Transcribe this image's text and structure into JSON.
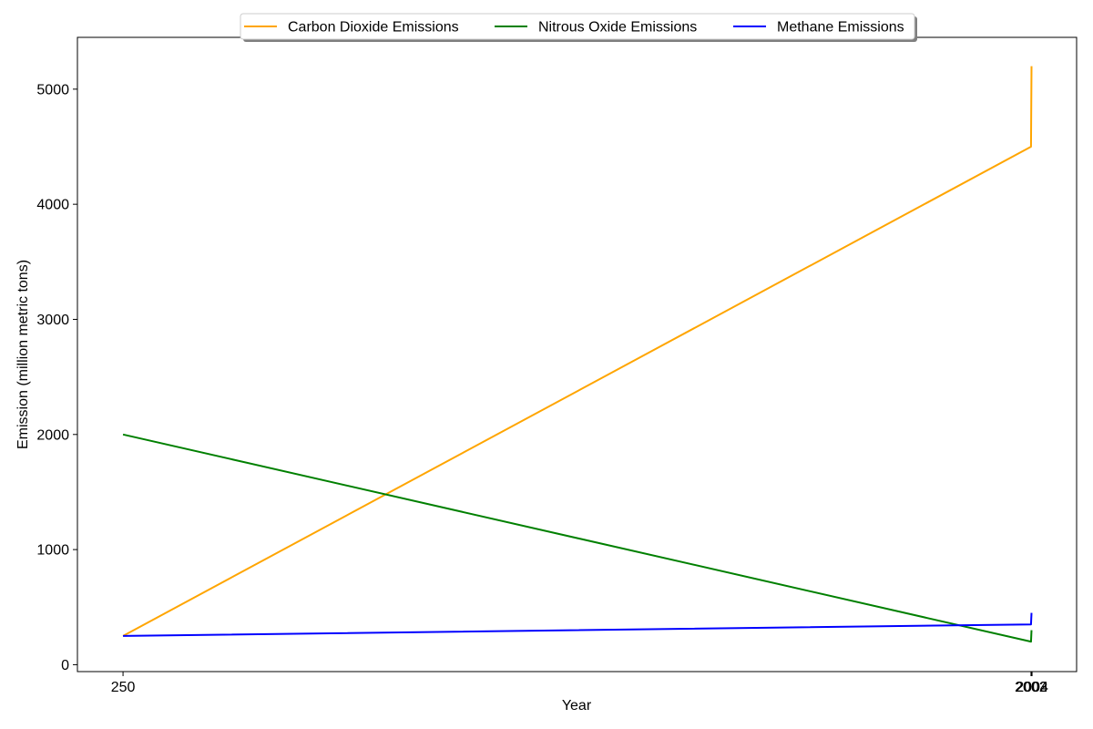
{
  "chart_data": {
    "type": "line",
    "title": "",
    "xlabel": "Year",
    "ylabel": "Emission (million metric tons)",
    "xlim": [
      162,
      2090
    ],
    "ylim": [
      -60,
      5450
    ],
    "grid": false,
    "legend_position": "top-center",
    "x_ticks": [
      250,
      2002,
      2003,
      2004
    ],
    "x_tick_labels": [
      "250",
      "2002",
      "2003",
      "2004"
    ],
    "y_ticks": [
      0,
      1000,
      2000,
      3000,
      4000,
      5000
    ],
    "y_tick_labels": [
      "0",
      "1000",
      "2000",
      "3000",
      "4000",
      "5000"
    ],
    "series": [
      {
        "name": "Carbon Dioxide Emissions",
        "color": "#ffa500",
        "x": [
          250,
          2002,
          2003
        ],
        "y": [
          250,
          4500,
          5200
        ]
      },
      {
        "name": "Nitrous Oxide Emissions",
        "color": "#008000",
        "x": [
          250,
          2002,
          2003
        ],
        "y": [
          2000,
          200,
          300
        ]
      },
      {
        "name": "Methane Emissions",
        "color": "#0000ff",
        "x": [
          250,
          2002,
          2003
        ],
        "y": [
          250,
          350,
          450
        ]
      }
    ]
  }
}
